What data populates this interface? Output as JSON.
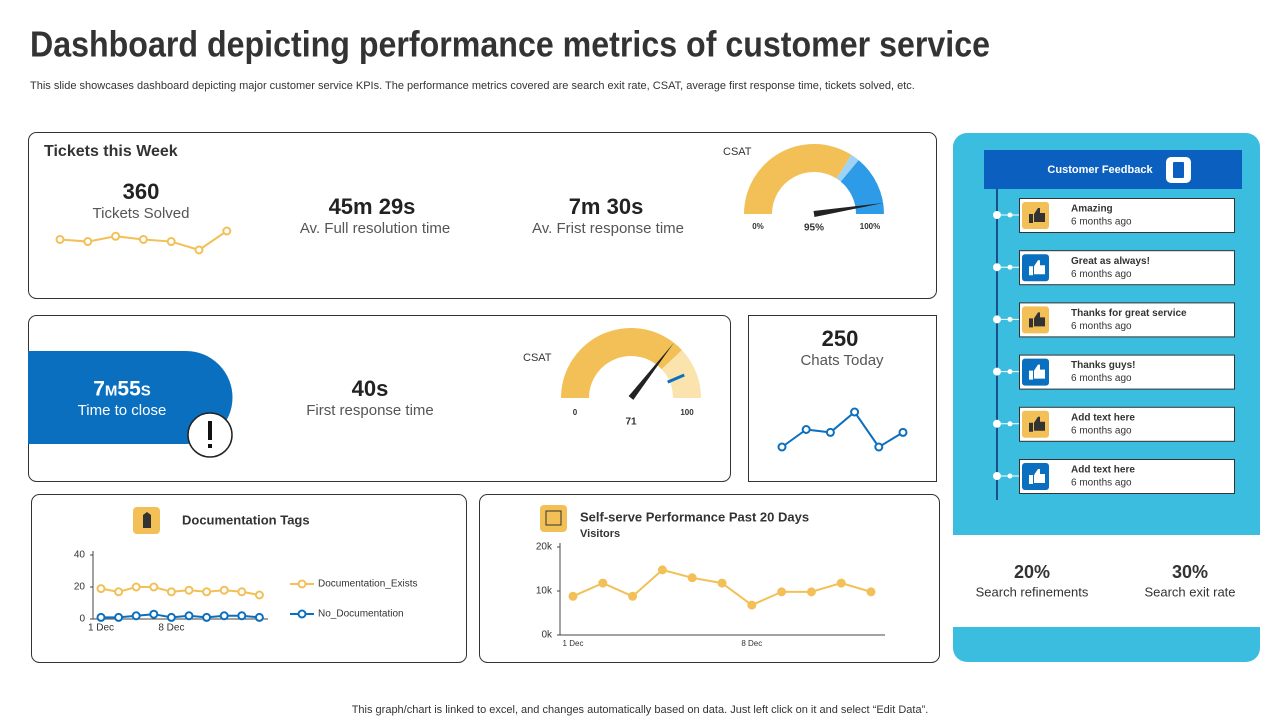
{
  "header": {
    "title": "Dashboard depicting performance metrics of customer service",
    "subtitle": "This slide showcases dashboard depicting major customer service KPIs. The performance metrics covered are search exit rate, CSAT,  average first response time, tickets solved, etc."
  },
  "tickets_week": {
    "title": "Tickets this Week",
    "tickets_solved": {
      "value": "360",
      "label": "Tickets Solved",
      "trend": [
        10,
        9,
        11.5,
        10,
        9,
        5,
        14
      ]
    },
    "resolution": {
      "value": "45m 29s",
      "label": "Av. Full resolution time"
    },
    "first_response": {
      "value": "7m 30s",
      "label": "Av. Frist response time"
    },
    "csat": {
      "title": "CSAT",
      "value": 95,
      "value_label": "95%",
      "ticks": [
        {
          "value": 0,
          "label": "0%"
        },
        {
          "value": 100,
          "label": "100%"
        }
      ]
    }
  },
  "close": {
    "time_to_close": {
      "value": "7m55s",
      "label": "Time to close"
    },
    "first_response": {
      "value": "40s",
      "label": "First response time"
    },
    "csat": {
      "title": "CSAT",
      "value": 71,
      "ticks": [
        0,
        100
      ]
    }
  },
  "chats": {
    "value": "250",
    "label": "Chats Today",
    "trend": [
      3,
      6,
      5.5,
      9,
      3,
      5.5
    ]
  },
  "documentation": {
    "type": "line",
    "title": "Documentation Tags",
    "categories": [
      "1 Dec",
      null,
      null,
      null,
      "8 Dec",
      null,
      null,
      null,
      null,
      null
    ],
    "ylim": [
      0,
      40
    ],
    "yticks": [
      0,
      20,
      40
    ],
    "series": [
      {
        "name": "Documentation_Exists",
        "color": "#f2c057",
        "values": [
          19,
          17,
          20,
          20,
          17,
          18,
          17,
          18,
          17,
          15
        ]
      },
      {
        "name": "No_Documentation",
        "color": "#0b6fbf",
        "values": [
          1,
          1,
          2,
          3,
          1,
          2,
          1,
          2,
          2,
          1
        ]
      }
    ]
  },
  "self_serve": {
    "type": "line",
    "title": "Self-serve Performance Past 20 Days",
    "subtitle": "Visitors",
    "categories": [
      "1 Dec",
      null,
      null,
      null,
      null,
      null,
      "8 Dec",
      null,
      null,
      null,
      null
    ],
    "ylim": [
      0,
      20000
    ],
    "yticks": [
      {
        "value": 0,
        "label": "0k"
      },
      {
        "value": 10000,
        "label": "10k"
      },
      {
        "value": 20000,
        "label": "20k"
      }
    ],
    "series": [
      {
        "name": "Visitors",
        "color": "#f2c057",
        "values": [
          8800,
          11800,
          8800,
          14800,
          13000,
          11800,
          6800,
          9800,
          9800,
          11800,
          9800
        ]
      }
    ]
  },
  "feedback": {
    "title": "Customer Feedback",
    "items": [
      {
        "text": "Amazing",
        "time": "6 months ago"
      },
      {
        "text": "Great as always!",
        "time": "6 months ago"
      },
      {
        "text": "Thanks for great service",
        "time": "6 months ago"
      },
      {
        "text": "Thanks guys!",
        "time": "6 months ago"
      },
      {
        "text": "Add text here",
        "time": "6 months ago"
      },
      {
        "text": "Add text here",
        "time": "6 months ago"
      }
    ]
  },
  "search": [
    {
      "value": "20%",
      "label": "Search refinements"
    },
    {
      "value": "30%",
      "label": "Search exit rate"
    }
  ],
  "footer": "This graph/chart is linked to excel,  and changes automatically based on data. Just left click on it and select “Edit Data”."
}
